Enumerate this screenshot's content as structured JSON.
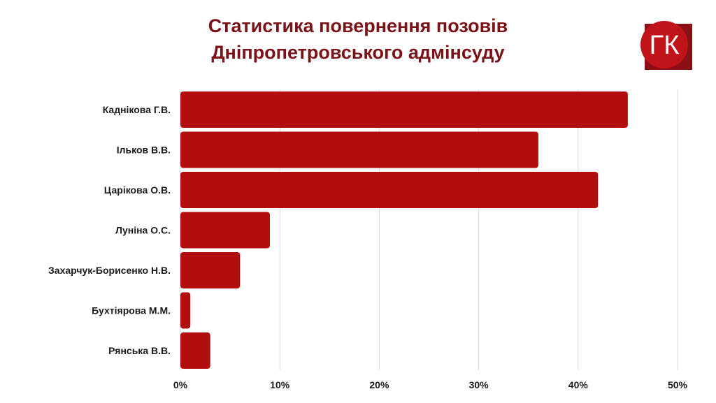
{
  "title": {
    "line1": "Статистика повернення позовів",
    "line2": "Дніпропетровського адмінсуду"
  },
  "logo": {
    "text": "ГК",
    "colors": {
      "circle": "#c0141a",
      "square": "#8b1015"
    }
  },
  "colors": {
    "bar": "#b20e0e",
    "grid": "#d9d9d9",
    "title": "#7a1218"
  },
  "chart_data": {
    "type": "bar",
    "orientation": "horizontal",
    "categories": [
      "Каднікова Г.В.",
      "Ільков В.В.",
      "Царікова О.В.",
      "Луніна О.С.",
      "Захарчук-Борисенко Н.В.",
      "Бухтіярова М.М.",
      "Рянська В.В."
    ],
    "values": [
      45,
      36,
      42,
      9,
      6,
      1,
      3
    ],
    "xticks": [
      "0%",
      "10%",
      "20%",
      "30%",
      "40%",
      "50%"
    ],
    "xlim": [
      0,
      50
    ],
    "grid": true,
    "title": "Статистика повернення позовів Дніпропетровського адмінсуду",
    "xlabel": "",
    "ylabel": ""
  }
}
